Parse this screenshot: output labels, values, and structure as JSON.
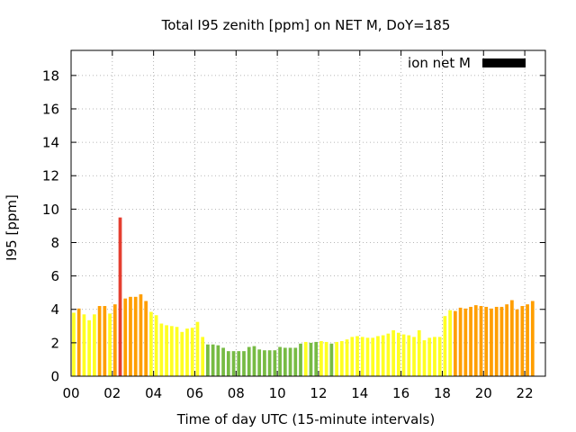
{
  "chart_data": {
    "type": "bar",
    "title": "Total I95 zenith [ppm] on NET M, DoY=185",
    "xlabel": "Time of day UTC (15-minute intervals)",
    "ylabel": "I95 [ppm]",
    "xlim": [
      0,
      23
    ],
    "ylim": [
      0,
      19.5
    ],
    "x_ticks": [
      "00",
      "02",
      "04",
      "06",
      "08",
      "10",
      "12",
      "14",
      "16",
      "18",
      "20",
      "22"
    ],
    "y_ticks": [
      "0",
      "2",
      "4",
      "6",
      "8",
      "10",
      "12",
      "14",
      "16",
      "18"
    ],
    "grid": true,
    "legend": {
      "label": "ion net M",
      "color": "#000000",
      "position": "top-right"
    },
    "bar_interval_hours": 0.25,
    "colors": {
      "green": "#77bb44",
      "yellow": "#ffff22",
      "orange": "#ff9e00",
      "red": "#e53e30"
    },
    "values": [
      3.8,
      4.05,
      3.7,
      3.35,
      3.7,
      4.2,
      4.2,
      3.75,
      4.3,
      9.5,
      4.65,
      4.75,
      4.75,
      4.9,
      4.5,
      3.85,
      3.65,
      3.15,
      3.05,
      3.0,
      2.95,
      2.65,
      2.85,
      2.9,
      3.25,
      2.35,
      1.9,
      1.9,
      1.85,
      1.7,
      1.5,
      1.5,
      1.5,
      1.5,
      1.75,
      1.8,
      1.6,
      1.55,
      1.55,
      1.55,
      1.75,
      1.7,
      1.7,
      1.7,
      1.95,
      2.05,
      2.0,
      2.05,
      2.1,
      2.05,
      1.95,
      2.05,
      2.1,
      2.2,
      2.35,
      2.4,
      2.35,
      2.3,
      2.3,
      2.4,
      2.45,
      2.55,
      2.75,
      2.6,
      2.5,
      2.45,
      2.35,
      2.75,
      2.15,
      2.3,
      2.35,
      2.35,
      3.6,
      3.95,
      3.9,
      4.1,
      4.05,
      4.15,
      4.25,
      4.2,
      4.15,
      4.05,
      4.15,
      4.15,
      4.3,
      4.55,
      4.0,
      4.2,
      4.3,
      4.5
    ],
    "bar_colors": [
      "yellow",
      "orange",
      "yellow",
      "yellow",
      "yellow",
      "orange",
      "orange",
      "yellow",
      "orange",
      "red",
      "orange",
      "orange",
      "orange",
      "orange",
      "orange",
      "yellow",
      "yellow",
      "yellow",
      "yellow",
      "yellow",
      "yellow",
      "yellow",
      "yellow",
      "yellow",
      "yellow",
      "yellow",
      "green",
      "green",
      "green",
      "green",
      "green",
      "green",
      "green",
      "green",
      "green",
      "green",
      "green",
      "green",
      "green",
      "green",
      "green",
      "green",
      "green",
      "green",
      "green",
      "yellow",
      "green",
      "green",
      "yellow",
      "yellow",
      "green",
      "yellow",
      "yellow",
      "yellow",
      "yellow",
      "yellow",
      "yellow",
      "yellow",
      "yellow",
      "yellow",
      "yellow",
      "yellow",
      "yellow",
      "yellow",
      "yellow",
      "yellow",
      "yellow",
      "yellow",
      "yellow",
      "yellow",
      "yellow",
      "yellow",
      "yellow",
      "yellow",
      "orange",
      "orange",
      "orange",
      "orange",
      "orange",
      "orange",
      "orange",
      "orange",
      "orange",
      "orange",
      "orange",
      "orange",
      "orange",
      "orange",
      "orange",
      "orange"
    ]
  }
}
